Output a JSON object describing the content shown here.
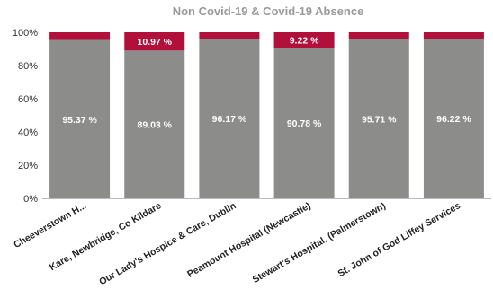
{
  "chart_data": {
    "type": "bar",
    "stacked": true,
    "percent_stacked": true,
    "title": "Non Covid-19 & Covid-19 Absence",
    "categories": [
      "Cheeverstown H...",
      "Kare, Newbridge, Co Kildare",
      "Our Lady's Hospice & Care, Dublin",
      "Peamount Hospital (Newcastle)",
      "Stewart's Hospital, (Palmerstown)",
      "St. John of God Liffey Services"
    ],
    "series": [
      {
        "color": "#8c8c8a",
        "values": [
          95.37,
          89.03,
          96.17,
          90.78,
          95.71,
          96.22
        ],
        "labels": [
          "95.37 %",
          "89.03 %",
          "96.17 %",
          "90.78 %",
          "95.71 %",
          "96.22 %"
        ]
      },
      {
        "color": "#b0103a",
        "values": [
          4.63,
          10.97,
          3.83,
          9.22,
          4.29,
          3.78
        ],
        "labels": [
          "",
          "10.97 %",
          "",
          "9.22 %",
          "",
          ""
        ]
      }
    ],
    "ylim": [
      0,
      100
    ],
    "y_ticks": [
      0,
      20,
      40,
      60,
      80,
      100
    ],
    "y_tick_labels": [
      "0%",
      "20%",
      "40%",
      "60%",
      "80%",
      "100%"
    ],
    "grid": false,
    "legend": "none"
  }
}
